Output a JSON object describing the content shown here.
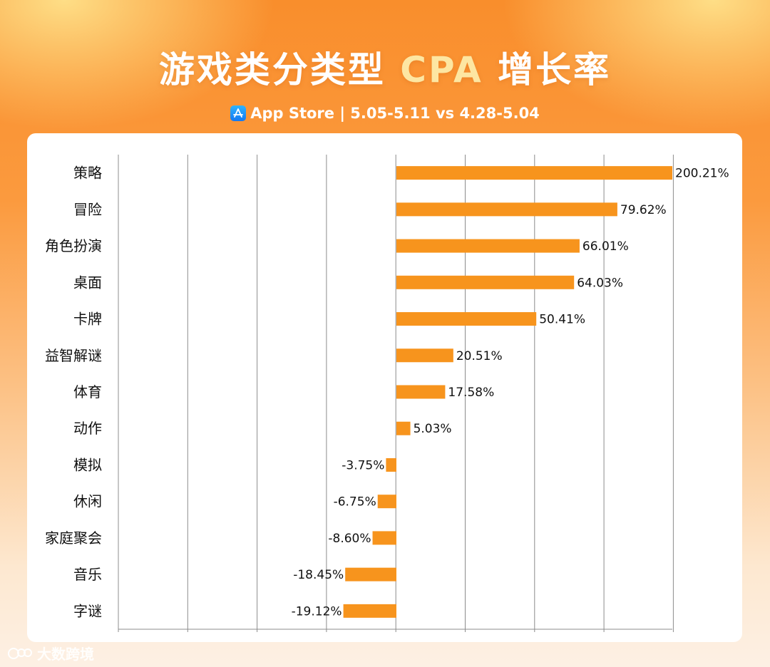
{
  "header": {
    "title_prefix": "游戏类分类型",
    "title_accent": "CPA",
    "title_suffix": "增长率",
    "subtitle": "App Store | 5.05-5.11 vs 4.28-5.04"
  },
  "watermark": {
    "text": "大数跨境"
  },
  "colors": {
    "bar": "#f7941d",
    "grid": "#8c8c8c",
    "accent": "#fde6a2"
  },
  "chart_data": {
    "type": "bar",
    "orientation": "horizontal",
    "categories": [
      "策略",
      "冒险",
      "角色扮演",
      "桌面",
      "卡牌",
      "益智解谜",
      "体育",
      "动作",
      "模拟",
      "休闲",
      "家庭聚会",
      "音乐",
      "字谜"
    ],
    "values": [
      200.21,
      79.62,
      66.01,
      64.03,
      50.41,
      20.51,
      17.58,
      5.03,
      -3.75,
      -6.75,
      -8.6,
      -18.45,
      -19.12
    ],
    "data_labels": [
      "200.21%",
      "79.62%",
      "66.01%",
      "64.03%",
      "50.41%",
      "20.51%",
      "17.58%",
      "5.03%",
      "-3.75%",
      "-6.75%",
      "-8.60%",
      "-18.45%",
      "-19.12%"
    ],
    "axis_break": true,
    "grid": true,
    "legend": "none"
  }
}
